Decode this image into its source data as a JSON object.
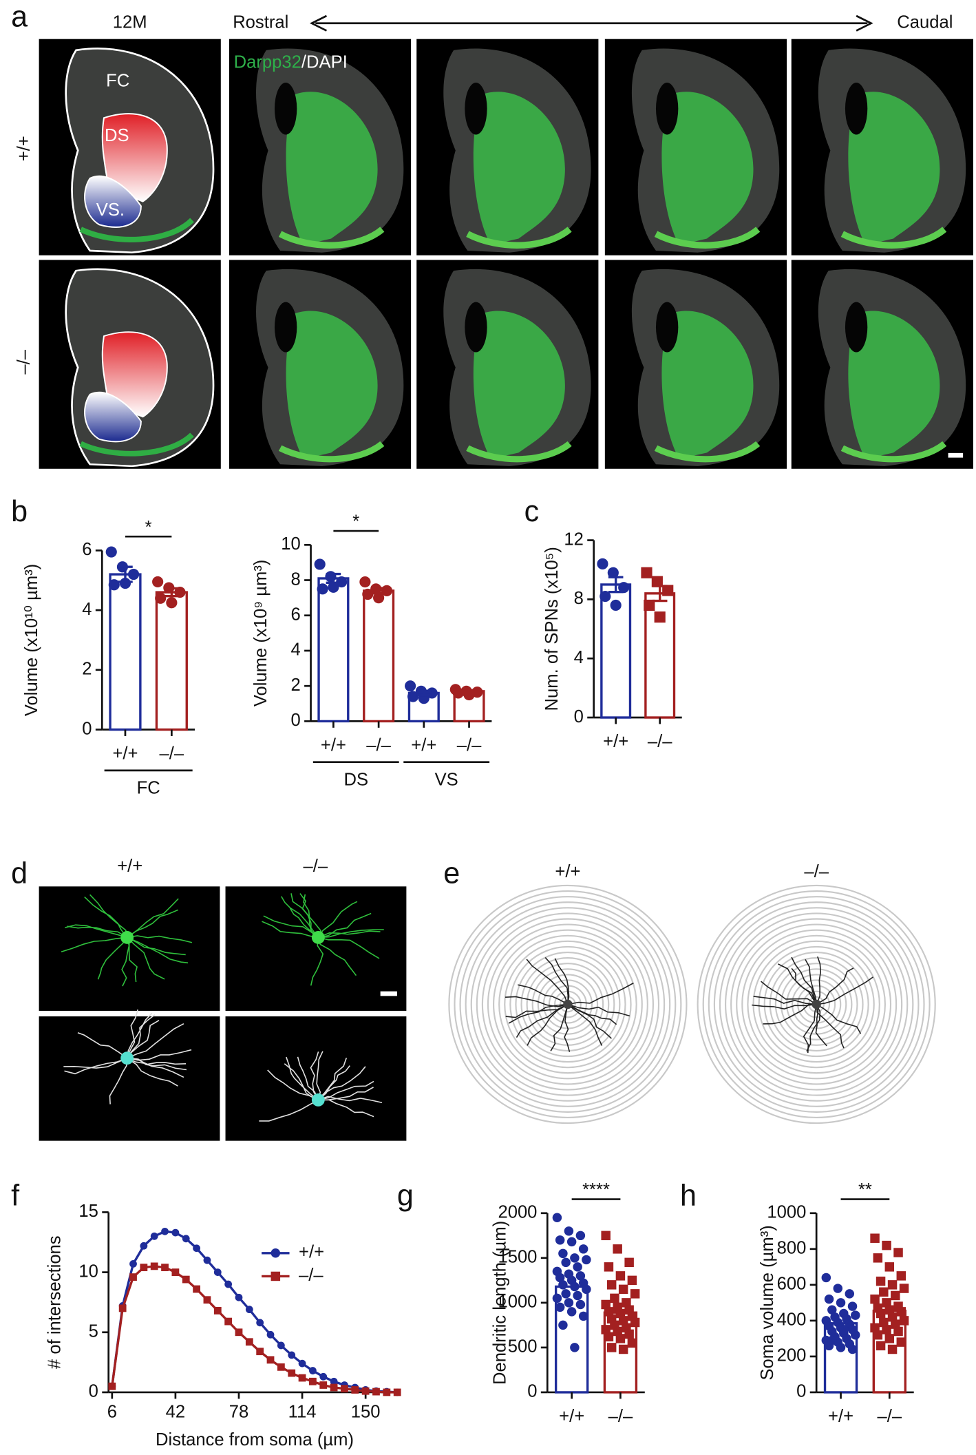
{
  "panel_labels": [
    "a",
    "b",
    "c",
    "d",
    "e",
    "f",
    "g",
    "h"
  ],
  "panel_a": {
    "age": "12M",
    "rostral": "Rostral",
    "caudal": "Caudal",
    "rows": [
      "+/+",
      "–/–"
    ],
    "stain": [
      "Darpp32",
      "/DAPI"
    ],
    "regions": [
      "FC",
      "DS",
      "VS."
    ]
  },
  "panel_d": {
    "columns": [
      "+/+",
      "–/–"
    ]
  },
  "panel_e": {
    "columns": [
      "+/+",
      "–/–"
    ]
  },
  "chart_data": [
    {
      "type": "bar",
      "ylabel": "Volume (x10¹⁰ µm³)",
      "categories": [
        "+/+",
        "–/–"
      ],
      "groups": [
        "FC"
      ],
      "values": [
        5.2,
        4.6
      ],
      "errors": [
        0.25,
        0.13
      ],
      "points": [
        [
          5.95,
          5.45,
          5.2,
          4.85,
          4.9
        ],
        [
          4.95,
          4.75,
          4.6,
          4.4,
          4.25
        ]
      ],
      "colors": [
        "#1f2d9a",
        "#a32020"
      ],
      "markers": [
        "circle",
        "circle"
      ],
      "ylim": [
        0,
        6
      ],
      "yticks": [
        0,
        2,
        4,
        6
      ],
      "annotations": [
        "*"
      ]
    },
    {
      "type": "bar",
      "ylabel": "Volume (x10⁹ µm³)",
      "categories": [
        "+/+",
        "–/–",
        "+/+",
        "–/–"
      ],
      "groups": [
        "DS",
        "VS"
      ],
      "values": [
        8.1,
        7.4,
        1.6,
        1.7
      ],
      "errors": [
        0.25,
        0.15,
        0.12,
        0.06
      ],
      "points": [
        [
          8.9,
          8.2,
          7.9,
          7.5,
          7.6
        ],
        [
          7.9,
          7.5,
          7.4,
          7.2,
          7.0
        ],
        [
          2.0,
          1.7,
          1.6,
          1.4,
          1.3
        ],
        [
          1.8,
          1.7,
          1.65,
          1.6,
          1.5
        ]
      ],
      "colors": [
        "#1f2d9a",
        "#a32020",
        "#1f2d9a",
        "#a32020"
      ],
      "markers": [
        "circle",
        "circle",
        "circle",
        "circle"
      ],
      "ylim": [
        0,
        10
      ],
      "yticks": [
        0,
        2,
        4,
        6,
        8,
        10
      ],
      "annotations": [
        "*"
      ]
    },
    {
      "type": "bar",
      "ylabel": "Num. of SPNs (x10⁵)",
      "categories": [
        "+/+",
        "–/–"
      ],
      "values": [
        9.0,
        8.4
      ],
      "errors": [
        0.5,
        0.5
      ],
      "points": [
        [
          10.4,
          9.8,
          8.8,
          8.2,
          7.6
        ],
        [
          9.8,
          9.2,
          8.6,
          7.6,
          6.8
        ]
      ],
      "colors": [
        "#1f2d9a",
        "#a32020"
      ],
      "markers": [
        "circle",
        "square"
      ],
      "ylim": [
        0,
        12
      ],
      "yticks": [
        0,
        4,
        8,
        12
      ]
    },
    {
      "type": "line",
      "ylabel": "# of intersections",
      "xlabel": "Distance from soma (µm)",
      "x": [
        6,
        12,
        18,
        24,
        30,
        36,
        42,
        48,
        54,
        60,
        66,
        72,
        78,
        84,
        90,
        96,
        102,
        108,
        114,
        120,
        126,
        132,
        138,
        144,
        150,
        156,
        162,
        168
      ],
      "series": [
        {
          "name": "+/+",
          "color": "#1f2d9a",
          "marker": "circle",
          "values": [
            0.5,
            7.2,
            10.7,
            12.2,
            13.0,
            13.4,
            13.3,
            12.8,
            12.0,
            11.0,
            10.0,
            9.0,
            7.9,
            6.9,
            5.8,
            4.8,
            3.9,
            3.1,
            2.4,
            1.8,
            1.3,
            0.9,
            0.6,
            0.4,
            0.2,
            0.1,
            0.05,
            0
          ]
        },
        {
          "name": "–/–",
          "color": "#a32020",
          "marker": "square",
          "values": [
            0.5,
            7.0,
            9.6,
            10.4,
            10.5,
            10.4,
            10.0,
            9.4,
            8.6,
            7.7,
            6.8,
            5.9,
            5.0,
            4.2,
            3.4,
            2.7,
            2.1,
            1.6,
            1.2,
            0.9,
            0.6,
            0.4,
            0.3,
            0.2,
            0.1,
            0.05,
            0,
            0
          ]
        }
      ],
      "xlim": [
        4,
        170
      ],
      "xticks": [
        6,
        42,
        78,
        114,
        150
      ],
      "ylim": [
        0,
        15
      ],
      "yticks": [
        0,
        5,
        10,
        15
      ],
      "legend": "upper right"
    },
    {
      "type": "bar",
      "ylabel": "Dendritic length (µm)",
      "categories": [
        "+/+",
        "–/–"
      ],
      "values": [
        1180,
        890
      ],
      "points": [
        [
          1950,
          1800,
          1750,
          1700,
          1680,
          1600,
          1550,
          1500,
          1480,
          1450,
          1400,
          1350,
          1320,
          1300,
          1280,
          1250,
          1220,
          1200,
          1180,
          1150,
          1100,
          1080,
          1050,
          1000,
          980,
          950,
          900,
          850,
          750,
          500
        ],
        [
          1750,
          1600,
          1450,
          1400,
          1300,
          1250,
          1200,
          1150,
          1100,
          1050,
          1000,
          980,
          950,
          920,
          900,
          880,
          850,
          820,
          800,
          780,
          750,
          720,
          700,
          680,
          650,
          620,
          600,
          550,
          500,
          480
        ]
      ],
      "colors": [
        "#1f2d9a",
        "#a32020"
      ],
      "markers": [
        "circle",
        "square"
      ],
      "ylim": [
        0,
        2000
      ],
      "yticks": [
        0,
        500,
        1000,
        1500,
        2000
      ],
      "annotations": [
        "****"
      ]
    },
    {
      "type": "bar",
      "ylabel": "Soma volume (µm³)",
      "categories": [
        "+/+",
        "–/–"
      ],
      "values": [
        385,
        455
      ],
      "points": [
        [
          640,
          580,
          550,
          520,
          500,
          480,
          460,
          440,
          430,
          420,
          410,
          400,
          390,
          380,
          370,
          360,
          350,
          340,
          330,
          320,
          310,
          300,
          290,
          280,
          270,
          260,
          250,
          240,
          290,
          350
        ],
        [
          860,
          820,
          780,
          750,
          700,
          650,
          620,
          600,
          580,
          560,
          540,
          520,
          500,
          480,
          470,
          460,
          450,
          440,
          420,
          400,
          390,
          380,
          360,
          350,
          340,
          320,
          300,
          280,
          260,
          240
        ]
      ],
      "colors": [
        "#1f2d9a",
        "#a32020"
      ],
      "markers": [
        "circle",
        "square"
      ],
      "ylim": [
        0,
        1000
      ],
      "yticks": [
        0,
        200,
        400,
        600,
        800,
        1000
      ],
      "annotations": [
        "**"
      ]
    }
  ]
}
